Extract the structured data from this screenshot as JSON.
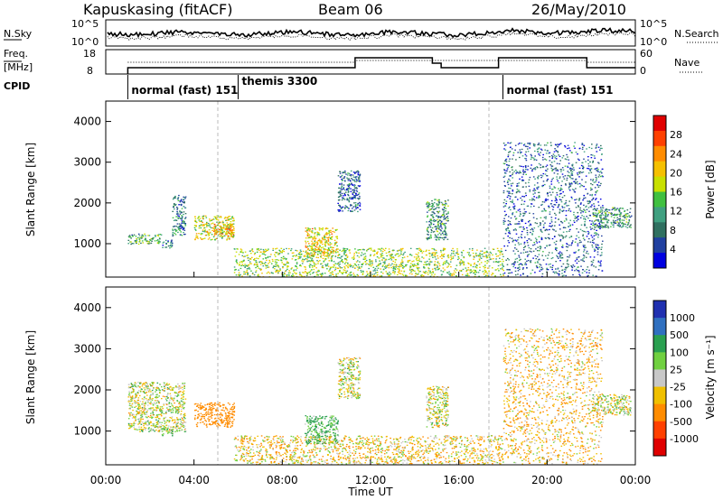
{
  "header": {
    "station": "Kapuskasing (fitACF)",
    "beam": "Beam 06",
    "date": "26/May/2010"
  },
  "noise_panel": {
    "left_label": "N.Sky",
    "left_ticks": [
      "10^5",
      "10^0"
    ],
    "right_label": "N.Search",
    "right_ticks": [
      "10^5",
      "10^0"
    ]
  },
  "freq_panel": {
    "left_label_1": "Freq.",
    "left_label_2": "[MHz]",
    "left_ticks": [
      "18",
      "8"
    ],
    "right_label": "Nave",
    "right_ticks": [
      "60",
      "0"
    ]
  },
  "cpid": {
    "label": "CPID",
    "segments": [
      {
        "name": "normal (fast) 151",
        "start": 1.0,
        "end": 6.0
      },
      {
        "name": "themis 3300",
        "start": 6.0,
        "end": 18.0
      },
      {
        "name": "normal (fast) 151",
        "start": 18.0,
        "end": 24.0
      }
    ]
  },
  "power_panel": {
    "ylabel": "Slant Range [km]",
    "cbar_label": "Power [dB]",
    "cbar_ticks": [
      "28",
      "24",
      "20",
      "16",
      "12",
      "8",
      "4"
    ],
    "cbar_colors": [
      "#e00000",
      "#ff4000",
      "#ff8c00",
      "#f5c000",
      "#c8e000",
      "#40c040",
      "#40a080",
      "#307060",
      "#2040a0",
      "#0000e0"
    ]
  },
  "velocity_panel": {
    "ylabel": "Slant Range [km]",
    "cbar_label": "Velocity [m s⁻¹]",
    "cbar_ticks": [
      "1000",
      "500",
      "100",
      "25",
      "-25",
      "-100",
      "-500",
      "-1000"
    ],
    "cbar_colors": [
      "#2030b0",
      "#3070c0",
      "#2aa050",
      "#70d040",
      "#c8c8c8",
      "#f0c000",
      "#ff8c00",
      "#ff4000",
      "#e00000"
    ]
  },
  "time_axis": {
    "xlabel": "Time UT",
    "ticks": [
      "00:00",
      "04:00",
      "08:00",
      "12:00",
      "16:00",
      "20:00",
      "00:00"
    ]
  },
  "range_axis_ticks": [
    "4000",
    "3000",
    "2000",
    "1000"
  ],
  "chart_data": [
    {
      "type": "heatmap",
      "title": "Power",
      "x_range_hours": [
        0,
        24
      ],
      "y_range_km": [
        180,
        4500
      ],
      "ylabel": "Slant Range [km]",
      "colorbar": {
        "label": "Power [dB]",
        "range": [
          0,
          32
        ]
      },
      "scatter_regions": [
        {
          "t0": 1.0,
          "t1": 2.5,
          "r0": 1000,
          "r1": 1250,
          "value": 12
        },
        {
          "t0": 2.5,
          "t1": 3.0,
          "r0": 900,
          "r1": 1100,
          "value": 8
        },
        {
          "t0": 3.0,
          "t1": 3.6,
          "r0": 1200,
          "r1": 2200,
          "value": 8
        },
        {
          "t0": 4.0,
          "t1": 5.8,
          "r0": 1100,
          "r1": 1700,
          "value": 18
        },
        {
          "t0": 4.8,
          "t1": 5.8,
          "r0": 1200,
          "r1": 1500,
          "value": 22
        },
        {
          "t0": 5.8,
          "t1": 18.0,
          "r0": 200,
          "r1": 900,
          "value": 16
        },
        {
          "t0": 9.0,
          "t1": 10.5,
          "r0": 700,
          "r1": 1400,
          "value": 20
        },
        {
          "t0": 10.5,
          "t1": 11.5,
          "r0": 1800,
          "r1": 2800,
          "value": 6
        },
        {
          "t0": 14.5,
          "t1": 15.5,
          "r0": 1100,
          "r1": 2100,
          "value": 10
        },
        {
          "t0": 18.0,
          "t1": 22.5,
          "r0": 200,
          "r1": 3500,
          "value": 6
        },
        {
          "t0": 22.0,
          "t1": 23.8,
          "r0": 1400,
          "r1": 1900,
          "value": 10
        }
      ]
    },
    {
      "type": "heatmap",
      "title": "Velocity",
      "x_range_hours": [
        0,
        24
      ],
      "y_range_km": [
        180,
        4500
      ],
      "ylabel": "Slant Range [km]",
      "colorbar": {
        "label": "Velocity [m s⁻¹]",
        "range": [
          -1000,
          1000
        ]
      },
      "scatter_regions": [
        {
          "t0": 1.0,
          "t1": 3.6,
          "r0": 1000,
          "r1": 2200,
          "value": 0
        },
        {
          "t0": 2.5,
          "t1": 3.0,
          "r0": 900,
          "r1": 1100,
          "value": 60
        },
        {
          "t0": 4.0,
          "t1": 5.8,
          "r0": 1100,
          "r1": 1700,
          "value": -300
        },
        {
          "t0": 5.8,
          "t1": 18.0,
          "r0": 200,
          "r1": 900,
          "value": -50
        },
        {
          "t0": 9.0,
          "t1": 10.5,
          "r0": 700,
          "r1": 1400,
          "value": 120
        },
        {
          "t0": 10.5,
          "t1": 11.5,
          "r0": 1800,
          "r1": 2800,
          "value": 0
        },
        {
          "t0": 14.5,
          "t1": 15.5,
          "r0": 1100,
          "r1": 2100,
          "value": 0
        },
        {
          "t0": 18.0,
          "t1": 22.5,
          "r0": 200,
          "r1": 3500,
          "value": -80
        },
        {
          "t0": 22.0,
          "t1": 23.8,
          "r0": 1400,
          "r1": 1900,
          "value": 0
        }
      ]
    }
  ]
}
